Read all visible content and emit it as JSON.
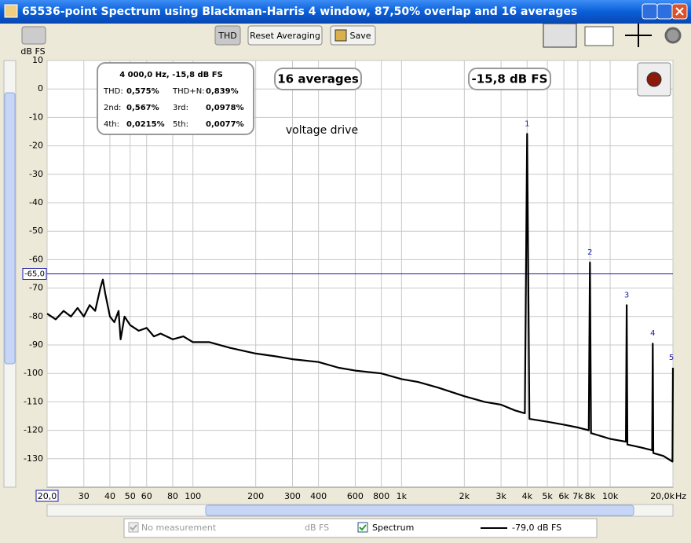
{
  "window": {
    "title": "65536-point Spectrum using Blackman-Harris 4 window, 87,50% overlap and 16 averages"
  },
  "toolbar": {
    "buttons": [
      "THD",
      "Reset Averaging",
      "Save"
    ]
  },
  "chart_data": {
    "type": "line",
    "y_label": "dB FS",
    "x_unit": "Hz",
    "log_x": true,
    "grid": true,
    "xlim": [
      20,
      20000
    ],
    "ylim": [
      -140,
      10
    ],
    "xticks": [
      {
        "value": 20,
        "label": "20,0"
      },
      30,
      40,
      50,
      60,
      80,
      100,
      200,
      300,
      400,
      600,
      800,
      {
        "value": 1000,
        "label": "1k"
      },
      {
        "value": 2000,
        "label": "2k"
      },
      {
        "value": 3000,
        "label": "3k"
      },
      {
        "value": 4000,
        "label": "4k"
      },
      {
        "value": 5000,
        "label": "5k"
      },
      {
        "value": 6000,
        "label": "6k"
      },
      {
        "value": 7000,
        "label": "7k"
      },
      {
        "value": 8000,
        "label": "8k"
      },
      {
        "value": 10000,
        "label": "10k"
      },
      {
        "value": 20000,
        "label": "20,0k"
      }
    ],
    "yticks": [
      10,
      0,
      -10,
      -20,
      -30,
      -40,
      -50,
      -60,
      -70,
      -80,
      -90,
      -100,
      -110,
      -120,
      -130
    ],
    "cursor": {
      "value": -65,
      "label": "-65,0",
      "color": "#1a1aa6"
    },
    "series": [
      {
        "name": "Spectrum",
        "color": "#000000",
        "x": [
          20,
          22,
          24,
          26,
          28,
          30,
          32,
          34,
          36,
          37,
          38,
          40,
          42,
          44,
          45,
          47,
          50,
          55,
          60,
          65,
          70,
          80,
          90,
          100,
          120,
          150,
          200,
          250,
          300,
          400,
          500,
          600,
          800,
          1000,
          1200,
          1500,
          2000,
          2500,
          3000,
          3500,
          3900,
          4000,
          4100,
          5000,
          6000,
          7000,
          7900,
          8000,
          8100,
          9000,
          10000,
          11900,
          12000,
          12100,
          14000,
          15900,
          16000,
          16100,
          18000,
          19900,
          20000
        ],
        "values": [
          -79,
          -81,
          -78,
          -80,
          -77,
          -80,
          -76,
          -78,
          -70,
          -67,
          -72,
          -80,
          -82,
          -78,
          -88,
          -80,
          -83,
          -85,
          -84,
          -87,
          -86,
          -88,
          -87,
          -89,
          -89,
          -91,
          -93,
          -94,
          -95,
          -96,
          -98,
          -99,
          -100,
          -102,
          -103,
          -105,
          -108,
          -110,
          -111,
          -113,
          -114,
          -15.8,
          -116,
          -117,
          -118,
          -119,
          -120,
          -61,
          -121,
          -122,
          -123,
          -124,
          -76,
          -125,
          -126,
          -127,
          -89.5,
          -128,
          -129,
          -131,
          -98
        ]
      }
    ],
    "peak_labels": [
      "1",
      "2",
      "3",
      "4",
      "5"
    ],
    "info": {
      "header": "4 000,0 Hz, -15,8 dB FS",
      "rows": [
        [
          "THD:",
          "0,575%",
          "THD+N:",
          "0,839%"
        ],
        [
          "2nd:",
          "0,567%",
          "3rd:",
          "0,0978%"
        ],
        [
          "4th:",
          "0,0215%",
          "5th:",
          "0,0077%"
        ]
      ]
    },
    "averages_badge": "16 averages",
    "level_badge": "-15,8 dB FS",
    "note": "voltage drive"
  },
  "legend": {
    "no_measurement": "No measurement",
    "unit": "dB FS",
    "spectrum": "Spectrum",
    "readout": "-79,0 dB FS"
  }
}
